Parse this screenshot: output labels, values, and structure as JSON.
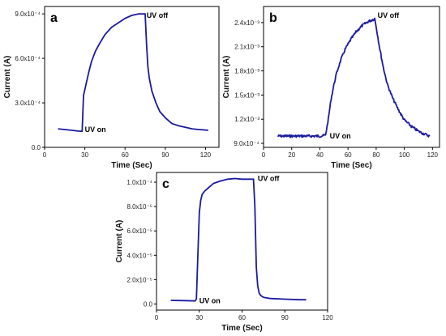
{
  "chart_data": [
    {
      "type": "line",
      "panel": "a",
      "xlabel": "Time (Sec)",
      "ylabel": "Current (A)",
      "xlim": [
        0,
        130
      ],
      "ylim": [
        0,
        0.00095
      ],
      "x_ticks": [
        0,
        30,
        60,
        90,
        120
      ],
      "x_tick_labels": [
        "0",
        "30",
        "60",
        "90",
        "120"
      ],
      "y_ticks": [
        0,
        0.0003,
        0.0006,
        0.0009
      ],
      "y_tick_labels": [
        "0.0",
        "3.0x10⁻⁴",
        "6.0x10⁻⁴",
        "9.0x10⁻⁴"
      ],
      "annotations": [
        {
          "text": "UV on",
          "x": 30,
          "y": 0.00012
        },
        {
          "text": "UV off",
          "x": 76,
          "y": 0.00089
        }
      ],
      "color": "#1a1aa0",
      "series": [
        {
          "x": [
            10,
            15,
            20,
            25,
            28,
            29,
            31,
            33,
            35,
            38,
            41,
            45,
            50,
            55,
            60,
            65,
            70,
            75,
            76,
            77,
            78,
            80,
            83,
            86,
            90,
            95,
            100,
            105,
            110,
            115,
            122
          ],
          "values": [
            0.000125,
            0.00012,
            0.000115,
            0.00011,
            0.000108,
            0.00035,
            0.00043,
            0.00051,
            0.00058,
            0.00065,
            0.0007,
            0.00076,
            0.00081,
            0.00084,
            0.00087,
            0.00089,
            0.0009,
            0.0009,
            0.0007,
            0.00055,
            0.00047,
            0.00038,
            0.0003,
            0.00024,
            0.0002,
            0.00016,
            0.000145,
            0.000135,
            0.000125,
            0.00012,
            0.000115
          ]
        }
      ]
    },
    {
      "type": "line",
      "panel": "b",
      "xlabel": "Time (Sec)",
      "ylabel": "Current (A)",
      "xlim": [
        0,
        125
      ],
      "ylim": [
        0.00085,
        0.0026
      ],
      "x_ticks": [
        0,
        20,
        40,
        60,
        80,
        100,
        120
      ],
      "x_tick_labels": [
        "0",
        "20",
        "40",
        "60",
        "80",
        "100",
        "120"
      ],
      "y_ticks": [
        0.0009,
        0.0012,
        0.0015,
        0.0018,
        0.0021,
        0.0024
      ],
      "y_tick_labels": [
        "9.0x10⁻⁴",
        "1.2x10⁻³",
        "1.5x10⁻³",
        "1.8x10⁻³",
        "2.1x10⁻³",
        "2.4x10⁻³"
      ],
      "annotations": [
        {
          "text": "UV on",
          "x": 47,
          "y": 0.00099
        },
        {
          "text": "UV off",
          "x": 81,
          "y": 0.00249
        }
      ],
      "color": "#1a1aa0",
      "series": [
        {
          "x": [
            10,
            20,
            30,
            40,
            44,
            46,
            48,
            50,
            52,
            55,
            58,
            62,
            66,
            70,
            74,
            78,
            79,
            80,
            82,
            85,
            88,
            92,
            96,
            100,
            105,
            110,
            115,
            118
          ],
          "values": [
            0.00099,
            0.00099,
            0.00099,
            0.00099,
            0.001,
            0.0012,
            0.00145,
            0.00163,
            0.00178,
            0.00194,
            0.00207,
            0.00219,
            0.00229,
            0.00236,
            0.00241,
            0.00244,
            0.00245,
            0.00235,
            0.00213,
            0.00185,
            0.00163,
            0.00145,
            0.00131,
            0.00119,
            0.00111,
            0.00105,
            0.00101,
            0.00099
          ]
        }
      ]
    },
    {
      "type": "line",
      "panel": "c",
      "xlabel": "Time (Sec)",
      "ylabel": "Current (A)",
      "xlim": [
        0,
        120
      ],
      "ylim": [
        -5e-06,
        0.000108
      ],
      "x_ticks": [
        0,
        30,
        60,
        90,
        120
      ],
      "x_tick_labels": [
        "0",
        "30",
        "60",
        "90",
        "120"
      ],
      "y_ticks": [
        0,
        2e-05,
        4e-05,
        6e-05,
        8e-05,
        0.0001
      ],
      "y_tick_labels": [
        "0.0",
        "2.0x10⁻⁵",
        "4.0x10⁻⁵",
        "6.0x10⁻⁵",
        "8.0x10⁻⁵",
        "1.0x10⁻⁴"
      ],
      "annotations": [
        {
          "text": "UV on",
          "x": 30,
          "y": 2.5e-06
        },
        {
          "text": "UV off",
          "x": 71,
          "y": 0.000103
        }
      ],
      "color": "#1a1aa0",
      "series": [
        {
          "x": [
            10,
            20,
            27,
            28,
            29,
            30,
            31,
            32,
            34,
            37,
            40,
            45,
            50,
            55,
            60,
            65,
            68,
            69,
            70,
            71,
            72,
            73,
            75,
            80,
            90,
            100,
            105
          ],
          "values": [
            3e-06,
            2.8e-06,
            2.5e-06,
            4e-06,
            4e-05,
            7.5e-05,
            8.5e-05,
            9e-05,
            9.3e-05,
            9.6e-05,
            9.9e-05,
            0.000101,
            0.0001025,
            0.000103,
            0.0001025,
            0.0001025,
            0.0001025,
            8e-05,
            3e-05,
            1.5e-05,
            9e-06,
            7e-06,
            5.5e-06,
            4.5e-06,
            4e-06,
            3.5e-06,
            3.5e-06
          ]
        }
      ]
    }
  ]
}
